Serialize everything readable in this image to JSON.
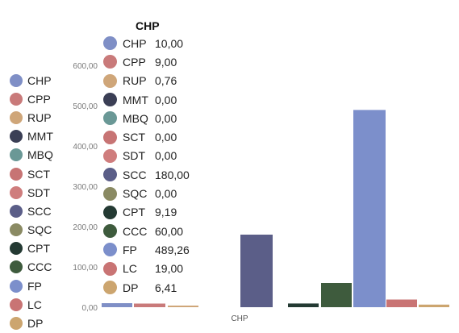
{
  "chart_data": {
    "type": "bar",
    "title": "CHP",
    "ylim": [
      0,
      600
    ],
    "y_ticks": [
      "0,00",
      "100,00",
      "200,00",
      "300,00",
      "400,00",
      "500,00",
      "600,00"
    ],
    "categories": [
      "CHP"
    ],
    "categories_all": [
      "CHP",
      "CPP",
      "RUP",
      "MMT",
      "MBQ",
      "SCT",
      "SDT",
      "SCC",
      "SQC",
      "CPT",
      "CCC",
      "FP",
      "LC",
      "DP"
    ],
    "colors": {
      "CHP": "#7f8fc6",
      "CPP": "#c97a7a",
      "RUP": "#cfa679",
      "MMT": "#3b3f55",
      "MBQ": "#6a9896",
      "SCT": "#c77474",
      "SDT": "#cf7d7d",
      "SCC": "#5b5e88",
      "SQC": "#8a8a63",
      "CPT": "#243a33",
      "CCC": "#3e5b3d",
      "FP": "#7c8fcb",
      "LC": "#c97474",
      "DP": "#cca56f"
    },
    "left_legend": [
      "CHP",
      "CPP",
      "RUP",
      "MMT",
      "MBQ",
      "SCT",
      "SDT",
      "SCC",
      "SQC",
      "CPT",
      "CCC",
      "FP",
      "LC",
      "DP"
    ],
    "tooltip": {
      "title": "CHP",
      "rows": [
        {
          "code": "CHP",
          "value": "10,00"
        },
        {
          "code": "CPP",
          "value": "9,00"
        },
        {
          "code": "RUP",
          "value": "0,76"
        },
        {
          "code": "MMT",
          "value": "0,00"
        },
        {
          "code": "MBQ",
          "value": "0,00"
        },
        {
          "code": "SCT",
          "value": "0,00"
        },
        {
          "code": "SDT",
          "value": "0,00"
        },
        {
          "code": "SCC",
          "value": "180,00"
        },
        {
          "code": "SQC",
          "value": "0,00"
        },
        {
          "code": "CPT",
          "value": "9,19"
        },
        {
          "code": "CCC",
          "value": "60,00"
        },
        {
          "code": "FP",
          "value": "489,26"
        },
        {
          "code": "LC",
          "value": "19,00"
        },
        {
          "code": "DP",
          "value": "6,41"
        }
      ]
    },
    "series": [
      {
        "name": "CHP",
        "values": [
          10.0
        ]
      },
      {
        "name": "CPP",
        "values": [
          9.0
        ]
      },
      {
        "name": "RUP",
        "values": [
          0.76
        ]
      },
      {
        "name": "MMT",
        "values": [
          0.0
        ]
      },
      {
        "name": "MBQ",
        "values": [
          0.0
        ]
      },
      {
        "name": "SCT",
        "values": [
          0.0
        ]
      },
      {
        "name": "SDT",
        "values": [
          0.0
        ]
      },
      {
        "name": "SCC",
        "values": [
          180.0
        ]
      },
      {
        "name": "SQC",
        "values": [
          0.0
        ]
      },
      {
        "name": "CPT",
        "values": [
          9.19
        ]
      },
      {
        "name": "CCC",
        "values": [
          60.0
        ]
      },
      {
        "name": "FP",
        "values": [
          489.26
        ]
      },
      {
        "name": "LC",
        "values": [
          19.0
        ]
      },
      {
        "name": "DP",
        "values": [
          6.41
        ]
      }
    ],
    "grid": false,
    "legend_position": "left"
  }
}
